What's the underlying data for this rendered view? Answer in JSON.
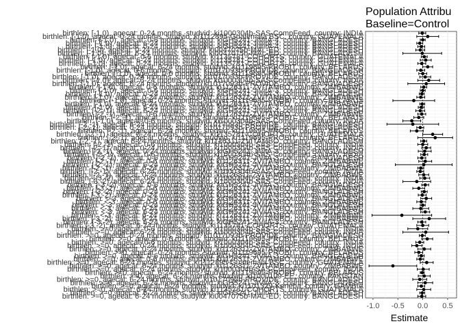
{
  "chart_data": {
    "type": "scatter",
    "title_lines": [
      "Population Attribu",
      "Baseline=Control"
    ],
    "xlabel": "Estimate",
    "ylabel": "",
    "xlim": [
      -1.15,
      0.68
    ],
    "x_ticks": [
      -1.0,
      -0.5,
      0.0,
      0.5
    ],
    "x_tick_labels": [
      "-1.0",
      "-0.5",
      "0.0",
      "0.5"
    ],
    "grid": true,
    "legend": "none",
    "colors": {
      "point": "#000000",
      "panel_border": "#333333",
      "grid_major": "#ebebeb",
      "grid_minor": "#f5f5f5"
    },
    "rows": [
      {
        "label": "birthlen: >=0, agecat: 6-24 months, studyid: ki0047075b-MAL-ED, country: BANGLADESH",
        "est": -0.02,
        "lo": -0.1,
        "hi": 0.06
      },
      {
        "label": "birthlen: >=0, agecat: 6-24 months, studyid: kiGH5241-JiVitA-4, country: BANGLADESH",
        "est": -0.01,
        "lo": -0.06,
        "hi": 0.04
      },
      {
        "label": "birthlen: >=0, agecat: 6-24 months, studyid: ki1135781-COHORTS, country: GUATEMALA",
        "est": 0.02,
        "lo": -0.12,
        "hi": 0.16
      },
      {
        "label": "birthlen: >=0, agecat: 6-24 months, studyid: ki1101329-Keneba, country: GAMBIA",
        "est": -0.03,
        "lo": -0.1,
        "hi": 0.04
      },
      {
        "label": "birthlen: >=0, agecat: 6-24 months, studyid: kiGH5241-JiVitA-3, country: BANGLADESH",
        "est": 0.05,
        "lo": -0.1,
        "hi": 0.2
      },
      {
        "label": "birthlen: >=0, agecat: 6-24 months, studyid: ki1017093b-PROVIDE, country: BANGLADESH",
        "est": -0.06,
        "lo": -0.2,
        "hi": 0.08
      },
      {
        "label": "birthlen: >=0, agecat: 6-24 months, studyid: ki1000109-EE, country: PAKISTAN",
        "est": 0.03,
        "lo": -0.09,
        "hi": 0.15
      },
      {
        "label": "birthlen: >=0, agecat: 6-24 months, studyid: ki1119695-PROBIT, country: BELARUS",
        "est": -0.01,
        "lo": -0.05,
        "hi": 0.03
      },
      {
        "label": "birthlen: >=0, agecat: 6-24 months, studyid: ki1000304b-SAS-CompFeed, country: INDIA",
        "est": 0.01,
        "lo": -0.11,
        "hi": 0.13
      },
      {
        "label": "birthlen: >=0, agecat: 6-24 months, studyid: ki1126311-ZVITAMBO, country: ZIMBABWE",
        "est": -0.6,
        "lo": -1.08,
        "hi": -0.12
      },
      {
        "label": "birthlen: >=0, agecat: 6-24 months, studyid: ki1112895-Guatemala BSC, country: GUATEMALA",
        "est": 0.08,
        "lo": -0.05,
        "hi": 0.21
      },
      {
        "label": "birthlen: >=0, agecat: 0-6 months, studyid: ki1126311-ZVITAMBO, country: ZIMBABWE",
        "est": -0.05,
        "lo": -0.12,
        "hi": 0.02
      },
      {
        "label": "birthlen: >=0, agecat: 0-6 months, studyid: kiGH5241-JiVitA-3, country: BANGLADESH",
        "est": -0.03,
        "lo": -0.09,
        "hi": 0.03
      },
      {
        "label": "birthlen: >=0, agecat: 0-24 months, studyid: ki1119695-PROBIT, country: BELARUS",
        "est": -0.08,
        "lo": -0.16,
        "hi": 0.0
      },
      {
        "label": "birthlen: >=0, agecat: 0-24 months, studyid: ki1126311-ZVITAMBO, country: ZIMBABWE",
        "est": 0.03,
        "lo": -0.1,
        "hi": 0.16
      },
      {
        "label": "birthlen: >=0, agecat: 0-24 months, studyid: ki1000304b-SAS-CompFeed, country: INDIA",
        "est": -0.12,
        "lo": -0.22,
        "hi": -0.02
      },
      {
        "label": "birthlen: >=0, agecat: 0-6 months, studyid: ki1000304b-SAS-CompFeed, country: INDIA",
        "est": -0.06,
        "lo": -0.14,
        "hi": 0.02
      },
      {
        "label": "birthlen: >=0, agecat: 0-6 months, studyid: ki1119695-PROBIT, country: BELARUS",
        "est": 0.09,
        "lo": -0.02,
        "hi": 0.2
      },
      {
        "label": "birthlen: >=0, agecat: 0-24 months, studyid: ki1017093b-PROVIDE, country: BANGLADESH",
        "est": -0.01,
        "lo": -0.07,
        "hi": 0.05
      },
      {
        "label": "birthlen: >=0, agecat: 6-24 months, studyid: ki1000304b-SAS-CompFeed, country: INDIA",
        "est": 0.06,
        "lo": -0.4,
        "hi": 0.52
      },
      {
        "label": "birthlen: >=0, agecat: 0-6 months, studyid: ki1000304b-SAS-CompFeed, country: INDIA",
        "est": -0.1,
        "lo": -0.3,
        "hi": 0.1
      },
      {
        "label": "birthlen: [-3,-2), agecat: 6-24 months, studyid: ki1135781-COHORTS, country: GUATEMALA",
        "est": 0.0,
        "lo": -0.12,
        "hi": 0.12
      },
      {
        "label": "birthlen: [-3,-2), agecat: 6-24 months, studyid: kiGH5241-JiVitA-3, country: BANGLADESH",
        "est": -0.02,
        "lo": -0.1,
        "hi": 0.06
      },
      {
        "label": "birthlen: [-3,-2), agecat: 6-24 months, studyid: ki1126311-ZVITAMBO, country: ZIMBABWE",
        "est": 0.13,
        "lo": -0.2,
        "hi": 0.46
      },
      {
        "label": "birthlen: <-3, agecat: 6-24 months, studyid: ki1126311-ZVITAMBO, country: ZIMBABWE",
        "est": -0.42,
        "lo": -1.02,
        "hi": 0.18
      },
      {
        "label": "birthlen: <-3, agecat: 6-24 months, studyid: kiGH5241-JiVitA-3, country: BANGLADESH",
        "est": 0.05,
        "lo": -0.04,
        "hi": 0.14
      },
      {
        "label": "birthlen: <-3, agecat: 0-24 months, studyid: ki1126311-ZVITAMBO, country: ZIMBABWE",
        "est": -0.04,
        "lo": -0.2,
        "hi": 0.12
      },
      {
        "label": "birthlen: <-3, agecat: 0-24 months, studyid: kiGH5241-JiVitA-3, country: BANGLADESH",
        "est": 0.0,
        "lo": -0.05,
        "hi": 0.05
      },
      {
        "label": "birthlen: <-3, agecat: 0-6 months, studyid: ki1126311-ZVITAMBO, country: ZIMBABWE",
        "est": -0.03,
        "lo": -0.12,
        "hi": 0.06
      },
      {
        "label": "birthlen: <-3, agecat: 0-6 months, studyid: kiGH5241-JiVitA-3, country: BANGLADESH",
        "est": 0.07,
        "lo": -0.04,
        "hi": 0.18
      },
      {
        "label": "birthlen: [-3,-2), agecat: 0-24 months, studyid: ki1126311-ZVITAMBO, country: ZIMBABWE",
        "est": -0.01,
        "lo": -0.09,
        "hi": 0.07
      },
      {
        "label": "birthlen: [-3,-2), agecat: 0-24 months, studyid: kiGH5241-JiVitA-3, country: BANGLADESH",
        "est": 0.03,
        "lo": -0.03,
        "hi": 0.09
      },
      {
        "label": "birthlen: [-3,-2), agecat: 0-6 months, studyid: ki1126311-ZVITAMBO, country: ZIMBABWE",
        "est": -0.08,
        "lo": -0.2,
        "hi": 0.04
      },
      {
        "label": "birthlen: [-3,-2), agecat: 0-6 months, studyid: kiGH5241-JiVitA-3, country: BANGLADESH",
        "est": 0.05,
        "lo": -0.02,
        "hi": 0.12
      },
      {
        "label": "birthlen: [-3,-2), agecat: 6-24 months, studyid: ki1000304b-SAS-CompFeed, country: INDIA",
        "est": -0.12,
        "lo": -0.4,
        "hi": 0.16
      },
      {
        "label": "birthlen: [-3,-2), agecat: 0-6 months, studyid: ki1000304b-SAS-CompFeed, country: INDIA",
        "est": 0.04,
        "lo": -0.06,
        "hi": 0.14
      },
      {
        "label": "birthlen: [-2,-1), agecat: 0-24 months, studyid: ki1126311-ZVITAMBO, country: ZIMBABWE",
        "est": 0.02,
        "lo": -0.08,
        "hi": 0.12
      },
      {
        "label": "birthlen: [-2,-1), agecat: 6-24 months, studyid: ki1000304b-SAS-CompFeed, country: INDIA",
        "est": -0.05,
        "lo": -0.12,
        "hi": 0.02
      },
      {
        "label": "birthlen: [-2,-1), agecat: 6-24 months, studyid: ki1126311-ZVITAMBO, country: ZIMBABWE",
        "est": -0.04,
        "lo": -0.1,
        "hi": 0.02
      },
      {
        "label": "birthlen: [-2,-1), agecat: 6-24 months, studyid: kiGH5241-JiVitA-3, country: BANGLADESH",
        "est": 0.02,
        "lo": -0.55,
        "hi": 0.59
      },
      {
        "label": "birthlen: [-2,-1), agecat: 0-6 months, studyid: ki1126311-ZVITAMBO, country: ZIMBABWE",
        "est": 0.05,
        "lo": -0.08,
        "hi": 0.18
      },
      {
        "label": "birthlen: [-2,-1), agecat: 0-6 months, studyid: kiGH5241-JiVitA-3, country: BANGLADESH",
        "est": -0.02,
        "lo": -0.1,
        "hi": 0.06
      },
      {
        "label": "birthlen: [-2,-1), agecat: 0-6 months, studyid: ki1000304b-SAS-CompFeed, country: INDIA",
        "est": 0.03,
        "lo": -0.04,
        "hi": 0.1
      },
      {
        "label": "birthlen: [-2,-1), agecat: 0-24 months, studyid: kiGH5241-JiVitA-3, country: BANGLADESH",
        "est": 0.04,
        "lo": -0.09,
        "hi": 0.17
      },
      {
        "label": "birthlen: [-2,-1), agecat: 0-24 months, studyid: ki1000304b-SAS-CompFeed, country: INDIA",
        "est": 0.07,
        "lo": -0.02,
        "hi": 0.16
      },
      {
        "label": "birthlen: [-2,-1), agecat: 0-6 months, studyid: ki1000304b-SAS-CompFeed, country: INDIA",
        "est": 0.0,
        "lo": -0.1,
        "hi": 0.1
      },
      {
        "label": "birthlen: [-2,-1), agecat: 6-24 months, studyid: ki1126311-ZVITAMBO, country: BANGLADESH",
        "est": 0.02,
        "lo": -0.04,
        "hi": 0.08
      },
      {
        "label": "birthlen: [-2,-1), agecat: 0-24 months, studyid: ki1119695-PROBIT, country: BELARUS",
        "est": 0.25,
        "lo": -0.1,
        "hi": 0.6
      },
      {
        "label": "birthlen: [-2,-1), agecat: 0-24 months, studyid: ki1135781-COHORTS, country: GUATEMALA",
        "est": 0.2,
        "lo": 0.0,
        "hi": 0.4
      },
      {
        "label": "birthlen: [-2,-1), agecat: 6-24 months, studyid: ki1119695-PROBIT, country: BELARUS",
        "est": -0.12,
        "lo": -0.25,
        "hi": 0.01
      },
      {
        "label": "birthlen: [-2,-1), agecat: 0-24 months, studyid: ki1017093b-PROVIDE, country: BANGLADESH",
        "est": -0.05,
        "lo": -0.12,
        "hi": 0.02
      },
      {
        "label": "birthlen: [-2,-1), agecat: 6-24 months, studyid: ki1017093b-PROVIDE, country: BANGLADESH",
        "est": -0.2,
        "lo": -0.72,
        "hi": 0.32
      },
      {
        "label": "birthlen: [-1,0), agecat: 0-6 months, studyid: ki1000304b-SAS-CompFeed, country: INDIA",
        "est": -0.22,
        "lo": -0.4,
        "hi": -0.04
      },
      {
        "label": "birthlen: [-2,-1), agecat: 0-6 months, studyid: ki1119695-PROBIT, country: BELARUS",
        "est": -0.08,
        "lo": -0.18,
        "hi": 0.02
      },
      {
        "label": "birthlen: [-2,-1), agecat: 0-6 months, studyid: ki1126311-ZVITAMBO, country: ZIMBABWE",
        "est": -0.02,
        "lo": -0.1,
        "hi": 0.06
      },
      {
        "label": "birthlen: [-2,-1), agecat: 6-24 months, studyid: kiGH5241-JiVitA-4, country: BANGLADESH",
        "est": -0.05,
        "lo": -0.14,
        "hi": 0.04
      },
      {
        "label": "birthlen: [-1,0), agecat: 6-24 months, studyid: kiGH5241-JiVitA-3, country: BANGLADESH",
        "est": -0.03,
        "lo": -0.09,
        "hi": 0.03
      },
      {
        "label": "birthlen: [-1,0), agecat: 6-24 months, studyid: ki1126311-ZVITAMBO, country: ZIMBABWE",
        "est": -0.01,
        "lo": -0.06,
        "hi": 0.04
      },
      {
        "label": "birthlen: [-1,0), agecat: 0-24 months, studyid: ki1119695-PROBIT, country: BELARUS",
        "est": -0.18,
        "lo": -0.6,
        "hi": 0.24
      },
      {
        "label": "birthlen: [-1,0), agecat: 0-24 months, studyid: ki1126311-ZVITAMBO, country: ZIMBABWE",
        "est": -0.04,
        "lo": -0.12,
        "hi": 0.04
      },
      {
        "label": "birthlen: [-1,0), agecat: 0-24 months, studyid: kiGH5241-JiVitA-3, country: BANGLADESH",
        "est": -0.02,
        "lo": -0.07,
        "hi": 0.03
      },
      {
        "label": "birthlen: [-1,0), agecat: 0-6 months, studyid: kiGH5241-JiVitA-3, country: BANGLADESH",
        "est": 0.0,
        "lo": -0.05,
        "hi": 0.05
      },
      {
        "label": "birthlen: [-1,0), agecat: 0-6 months, studyid: ki1126311-ZVITAMBO, country: ZIMBABWE",
        "est": 0.02,
        "lo": -0.04,
        "hi": 0.08
      },
      {
        "label": "birthlen: [-1,0), agecat: 6-24 months, studyid: ki1017093b-PROVIDE, country: BANGLADESH",
        "est": 0.07,
        "lo": -0.3,
        "hi": 0.44
      },
      {
        "label": "birthlen: [-1,0), agecat: 6-24 months, studyid: ki1000304b-SAS-CompFeed, country: INDIA",
        "est": 0.12,
        "lo": -0.1,
        "hi": 0.34
      },
      {
        "label": "birthlen: [-1,0), agecat: 0-24 months, studyid: ki1017093b-PROVIDE, country: BANGLADESH",
        "est": 0.05,
        "lo": -0.06,
        "hi": 0.16
      },
      {
        "label": "birthlen: [-1,0), agecat: 0-6 months, studyid: ki1119695-PROBIT, country: BELARUS",
        "est": 0.0,
        "lo": -0.08,
        "hi": 0.08
      },
      {
        "label": "birthlen: [-1,0), agecat: 0-6 months, studyid: ki1017093b-PROVIDE, country: BANGLADESH",
        "est": -0.04,
        "lo": -0.12,
        "hi": 0.04
      },
      {
        "label": "birthlen: [-1,0), agecat: 6-24 months, studyid: ki1119695-PROBIT, country: BELARUS",
        "est": 0.1,
        "lo": 0.0,
        "hi": 0.2
      },
      {
        "label": "birthlen: [-1,0), agecat: 0-24 months, studyid: ki1135781-COHORTS, country: GUATEMALA",
        "est": -0.02,
        "lo": -0.1,
        "hi": 0.06
      },
      {
        "label": "birthlen: [-1,0), agecat: 6-24 months, studyid: ki1135781-COHORTS, country: GUATEMALA",
        "est": 0.06,
        "lo": -0.05,
        "hi": 0.17
      },
      {
        "label": "birthlen: [-1,0), agecat: 0-6 months, studyid: ki1135781-COHORTS, country: GUATEMALA",
        "est": 0.03,
        "lo": -0.03,
        "hi": 0.09
      },
      {
        "label": "birthlen: [-1,0), agecat: 6-24 months, studyid: ki0047075b-MAL-ED, country: BANGLADESH",
        "est": -0.01,
        "lo": -0.4,
        "hi": 0.38
      },
      {
        "label": "birthlen: [-1,0), agecat: 0-24 months, studyid: ki0047075b-MAL-ED, country: BANGLADESH",
        "est": -0.05,
        "lo": -0.14,
        "hi": 0.04
      },
      {
        "label": "birthlen: [-1,0), agecat: 0-24 months, studyid: kiGH5241-JiVitA-4, country: BANGLADESH",
        "est": -0.03,
        "lo": -0.1,
        "hi": 0.04
      },
      {
        "label": "birthlen: [-1,0), agecat: 6-24 months, studyid: kiGH5241-JiVitA-4, country: BANGLADESH",
        "est": -0.06,
        "lo": -0.12,
        "hi": 0.0
      },
      {
        "label": "birthlen: [-1,0), agecat: 0-6 months, studyid: kiGH5241-JiVitA-4, country: BANGLADESH",
        "est": 0.0,
        "lo": -0.05,
        "hi": 0.05
      },
      {
        "label": "birthlen: [-1,0), agecat: 0-24 months, studyid: ki1112895-Guatemala BSC, country: GUATEMALA",
        "est": 0.1,
        "lo": -0.12,
        "hi": 0.32
      },
      {
        "label": "birthlen: [-1,0), agecat: 0-24 months, studyid: ki1000304b-SAS-CompFeed, country: INDIA",
        "est": -0.01,
        "lo": -0.08,
        "hi": 0.06
      }
    ]
  }
}
